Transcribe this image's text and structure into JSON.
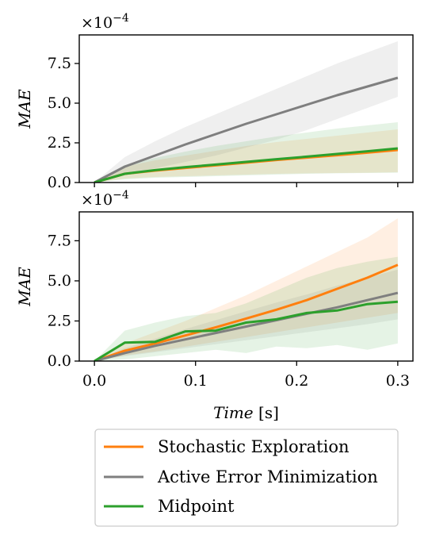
{
  "chart_data": [
    {
      "type": "line",
      "title": "",
      "xlabel": "",
      "ylabel": "MAE",
      "y_multiplier": "×10",
      "y_multiplier_exp": "−4",
      "xlim": [
        -0.015,
        0.315
      ],
      "ylim": [
        0,
        9.3
      ],
      "x_ticks": [
        0.0,
        0.1,
        0.2,
        0.3
      ],
      "x_tick_labels_visible": false,
      "y_ticks": [
        0.0,
        2.5,
        5.0,
        7.5
      ],
      "y_tick_labels": [
        "0.0",
        "2.5",
        "5.0",
        "7.5"
      ],
      "grid": false,
      "series": [
        {
          "name": "Stochastic Exploration",
          "color": "#ff7f0e",
          "x": [
            0,
            0.03,
            0.06,
            0.09,
            0.12,
            0.15,
            0.18,
            0.21,
            0.24,
            0.27,
            0.3
          ],
          "y": [
            0,
            0.55,
            0.75,
            0.92,
            1.08,
            1.25,
            1.42,
            1.57,
            1.72,
            1.88,
            2.05
          ],
          "lower": [
            0,
            0.25,
            0.35,
            0.4,
            0.45,
            0.5,
            0.55,
            0.58,
            0.6,
            0.62,
            0.65
          ],
          "upper": [
            0,
            1.0,
            1.4,
            1.7,
            2.0,
            2.3,
            2.55,
            2.75,
            2.95,
            3.15,
            3.35
          ]
        },
        {
          "name": "Active Error Minimization",
          "color": "#7f7f7f",
          "x": [
            0,
            0.03,
            0.06,
            0.09,
            0.12,
            0.15,
            0.18,
            0.21,
            0.24,
            0.27,
            0.3
          ],
          "y": [
            0,
            1.0,
            1.7,
            2.4,
            3.05,
            3.7,
            4.3,
            4.9,
            5.5,
            6.05,
            6.6
          ],
          "lower": [
            0,
            0.5,
            0.9,
            1.3,
            1.7,
            2.2,
            2.7,
            3.3,
            4.0,
            4.7,
            5.4
          ],
          "upper": [
            0,
            1.6,
            2.6,
            3.5,
            4.3,
            5.1,
            5.9,
            6.7,
            7.5,
            8.2,
            8.9
          ]
        },
        {
          "name": "Midpoint",
          "color": "#2ca02c",
          "x": [
            0,
            0.03,
            0.06,
            0.09,
            0.12,
            0.15,
            0.18,
            0.21,
            0.24,
            0.27,
            0.3
          ],
          "y": [
            0,
            0.55,
            0.78,
            0.97,
            1.13,
            1.3,
            1.47,
            1.63,
            1.8,
            1.97,
            2.15
          ],
          "lower": [
            0,
            0.2,
            0.3,
            0.35,
            0.4,
            0.45,
            0.5,
            0.55,
            0.58,
            0.6,
            0.62
          ],
          "upper": [
            0,
            1.1,
            1.55,
            1.95,
            2.3,
            2.6,
            2.9,
            3.15,
            3.4,
            3.6,
            3.8
          ]
        }
      ]
    },
    {
      "type": "line",
      "title": "",
      "xlabel": "Time [s]",
      "ylabel": "MAE",
      "y_multiplier": "×10",
      "y_multiplier_exp": "−4",
      "xlim": [
        -0.015,
        0.315
      ],
      "ylim": [
        0,
        9.3
      ],
      "x_ticks": [
        0.0,
        0.1,
        0.2,
        0.3
      ],
      "x_tick_labels": [
        "0.0",
        "0.1",
        "0.2",
        "0.3"
      ],
      "y_ticks": [
        0.0,
        2.5,
        5.0,
        7.5
      ],
      "y_tick_labels": [
        "0.0",
        "2.5",
        "5.0",
        "7.5"
      ],
      "grid": false,
      "series": [
        {
          "name": "Stochastic Exploration",
          "color": "#ff7f0e",
          "x": [
            0,
            0.03,
            0.06,
            0.09,
            0.12,
            0.15,
            0.18,
            0.21,
            0.24,
            0.27,
            0.3
          ],
          "y": [
            0,
            0.65,
            1.1,
            1.6,
            2.1,
            2.65,
            3.2,
            3.8,
            4.5,
            5.2,
            6.0
          ],
          "lower": [
            0,
            0.35,
            0.6,
            0.9,
            1.2,
            1.5,
            1.8,
            2.1,
            2.4,
            2.7,
            3.0
          ],
          "upper": [
            0,
            1.1,
            1.8,
            2.5,
            3.3,
            4.1,
            5.0,
            5.9,
            6.8,
            7.7,
            8.9
          ]
        },
        {
          "name": "Active Error Minimization",
          "color": "#7f7f7f",
          "x": [
            0,
            0.03,
            0.06,
            0.09,
            0.12,
            0.15,
            0.18,
            0.21,
            0.24,
            0.27,
            0.3
          ],
          "y": [
            0,
            0.5,
            0.95,
            1.35,
            1.75,
            2.15,
            2.55,
            2.95,
            3.35,
            3.8,
            4.25
          ],
          "lower": [
            0,
            0.3,
            0.55,
            0.8,
            1.05,
            1.3,
            1.55,
            1.8,
            2.05,
            2.3,
            2.6
          ],
          "upper": [
            0,
            0.8,
            1.4,
            2.0,
            2.55,
            3.1,
            3.65,
            4.15,
            4.7,
            5.2,
            5.7
          ]
        },
        {
          "name": "Midpoint",
          "color": "#2ca02c",
          "x": [
            0,
            0.03,
            0.06,
            0.09,
            0.12,
            0.15,
            0.18,
            0.21,
            0.24,
            0.27,
            0.3
          ],
          "y": [
            0,
            1.15,
            1.2,
            1.85,
            1.9,
            2.4,
            2.6,
            3.0,
            3.15,
            3.55,
            3.7
          ],
          "lower": [
            0,
            0.1,
            0.3,
            0.5,
            0.7,
            0.5,
            0.9,
            0.8,
            1.0,
            0.7,
            1.1
          ],
          "upper": [
            0,
            1.9,
            2.4,
            2.8,
            3.0,
            3.6,
            4.4,
            5.2,
            5.8,
            6.2,
            6.5
          ]
        }
      ]
    }
  ],
  "legend": {
    "placement": "bottom",
    "items": [
      {
        "label": "Stochastic Exploration",
        "color": "#ff7f0e"
      },
      {
        "label": "Active Error Minimization",
        "color": "#7f7f7f"
      },
      {
        "label": "Midpoint",
        "color": "#2ca02c"
      }
    ]
  }
}
